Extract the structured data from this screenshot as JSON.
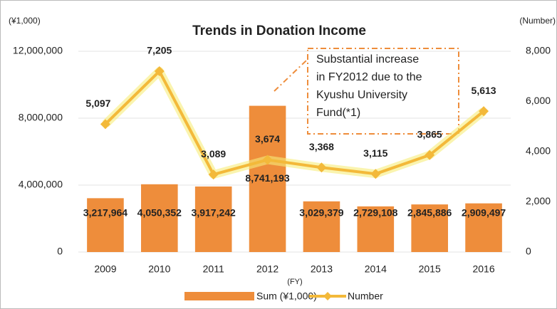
{
  "chart_data": {
    "type": "bar_line",
    "title": "Trends in Donation Income",
    "y_axis_label": "(¥1,000)",
    "y2_axis_label": "(Number)",
    "x_axis_label": "(FY)",
    "annotation": [
      "Substantial increase",
      "in FY2012 due to the",
      "Kyushu University",
      "Fund(*1)"
    ],
    "categories": [
      "2009",
      "2010",
      "2011",
      "2012",
      "2013",
      "2014",
      "2015",
      "2016"
    ],
    "series": [
      {
        "name": "Sum (¥1,000)",
        "type": "bar",
        "color": "#ee8d3b",
        "values": [
          3217964,
          4050352,
          3917242,
          8741193,
          3029379,
          2729108,
          2845886,
          2909497
        ],
        "value_labels": [
          "3,217,964",
          "4,050,352",
          "3,917,242",
          "8,741,193",
          "3,029,379",
          "2,729,108",
          "2,845,886",
          "2,909,497"
        ]
      },
      {
        "name": "Number",
        "type": "line",
        "axis": "y2",
        "color": "#f3b93a",
        "values": [
          5097,
          7205,
          3089,
          3674,
          3368,
          3115,
          3865,
          5613
        ],
        "value_labels": [
          "5,097",
          "7,205",
          "3,089",
          "3,674",
          "3,368",
          "3,115",
          "3,865",
          "5,613"
        ]
      }
    ],
    "ylim": [
      0,
      12000000
    ],
    "yticks": [
      0,
      {
        "value": 4000000,
        "label": "4,000,000"
      },
      {
        "value": 8000000,
        "label": "8,000,000"
      },
      {
        "value": 12000000,
        "label": "12,000,000"
      }
    ],
    "y2lim": [
      0,
      8000
    ],
    "y2ticks": [
      0,
      {
        "value": 2000,
        "label": "2,000"
      },
      {
        "value": 4000,
        "label": "4,000"
      },
      {
        "value": 6000,
        "label": "6,000"
      },
      {
        "value": 8000,
        "label": "8,000"
      }
    ],
    "grid": true
  }
}
